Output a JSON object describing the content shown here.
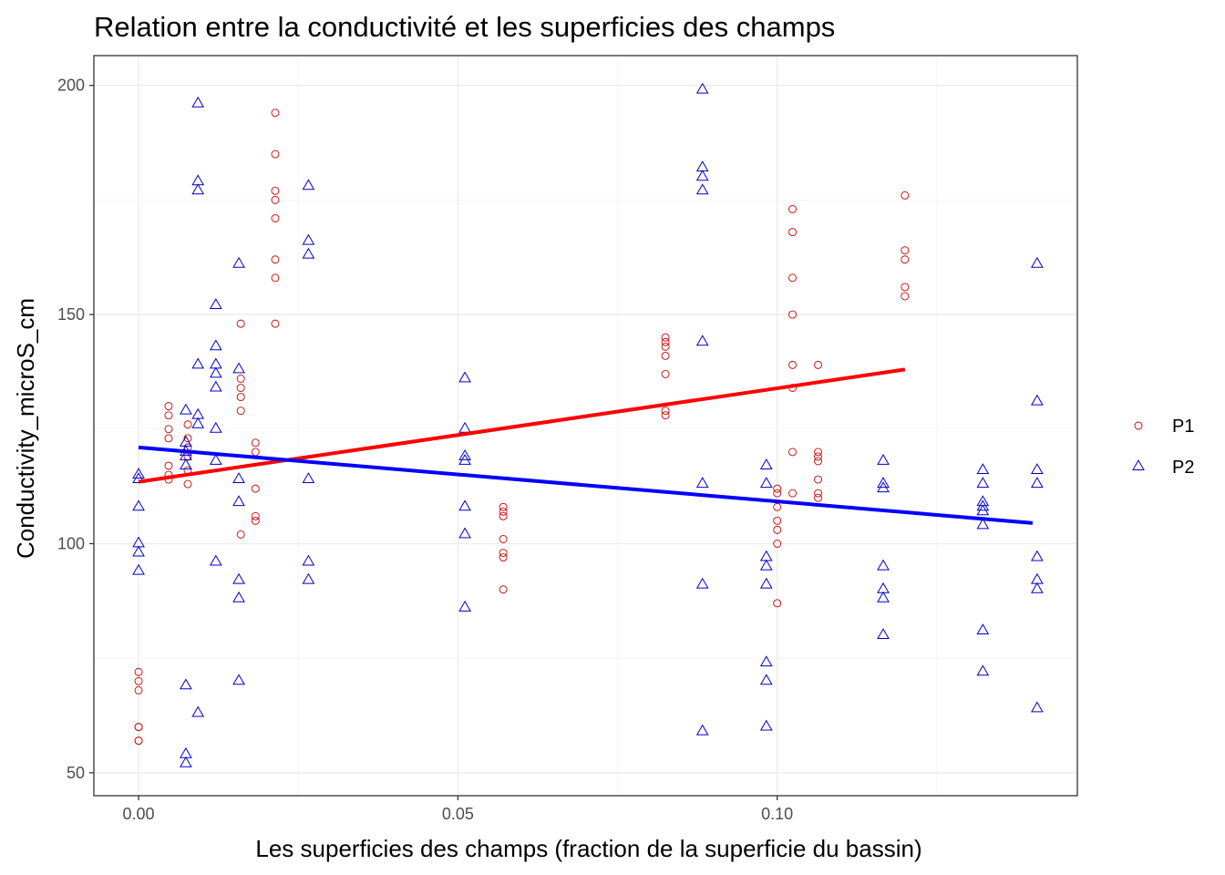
{
  "chart_data": {
    "type": "scatter",
    "title": "Relation entre la conductivité et les superficies des champs",
    "xlabel": "Les superficies des champs (fraction de la superficie du bassin)",
    "ylabel": "Conductivity_microS_cm",
    "xlim": [
      -0.007,
      0.147
    ],
    "ylim": [
      45,
      206.5
    ],
    "x_ticks": [
      0.0,
      0.05,
      0.1
    ],
    "x_tick_labels": [
      "0.00",
      "0.05",
      "0.10"
    ],
    "y_ticks": [
      50,
      100,
      150,
      200
    ],
    "y_tick_labels": [
      "50",
      "100",
      "150",
      "200"
    ],
    "grid": true,
    "legend_position": "right",
    "series": [
      {
        "name": "P1",
        "marker": "circle",
        "color": "#cc0000",
        "line_color": "#ff0000",
        "trend": {
          "x": [
            0.0,
            0.12
          ],
          "y": [
            113.5,
            138.0
          ]
        },
        "points": [
          [
            0.0,
            72
          ],
          [
            0.0,
            70
          ],
          [
            0.0,
            68
          ],
          [
            0.0,
            60
          ],
          [
            0.0,
            60
          ],
          [
            0.0,
            57
          ],
          [
            0.0,
            57
          ],
          [
            0.0047,
            130
          ],
          [
            0.0047,
            128
          ],
          [
            0.0047,
            125
          ],
          [
            0.0047,
            123
          ],
          [
            0.0047,
            117
          ],
          [
            0.0047,
            115
          ],
          [
            0.0047,
            114
          ],
          [
            0.0077,
            126
          ],
          [
            0.0077,
            123
          ],
          [
            0.0077,
            121
          ],
          [
            0.0077,
            119
          ],
          [
            0.0077,
            116
          ],
          [
            0.0077,
            113
          ],
          [
            0.016,
            148
          ],
          [
            0.016,
            136
          ],
          [
            0.016,
            134
          ],
          [
            0.016,
            132
          ],
          [
            0.016,
            129
          ],
          [
            0.016,
            102
          ],
          [
            0.0183,
            122
          ],
          [
            0.0183,
            120
          ],
          [
            0.0183,
            112
          ],
          [
            0.0183,
            106
          ],
          [
            0.0183,
            105
          ],
          [
            0.0214,
            194
          ],
          [
            0.0214,
            185
          ],
          [
            0.0214,
            177
          ],
          [
            0.0214,
            175
          ],
          [
            0.0214,
            171
          ],
          [
            0.0214,
            162
          ],
          [
            0.0214,
            158
          ],
          [
            0.0214,
            148
          ],
          [
            0.0571,
            108
          ],
          [
            0.0571,
            107
          ],
          [
            0.0571,
            106
          ],
          [
            0.0571,
            101
          ],
          [
            0.0571,
            98
          ],
          [
            0.0571,
            97
          ],
          [
            0.0571,
            90
          ],
          [
            0.0825,
            145
          ],
          [
            0.0825,
            144
          ],
          [
            0.0825,
            143
          ],
          [
            0.0825,
            141
          ],
          [
            0.0825,
            137
          ],
          [
            0.0825,
            129
          ],
          [
            0.0825,
            128
          ],
          [
            0.1,
            112
          ],
          [
            0.1,
            111
          ],
          [
            0.1,
            108
          ],
          [
            0.1,
            105
          ],
          [
            0.1,
            103
          ],
          [
            0.1,
            100
          ],
          [
            0.1,
            87
          ],
          [
            0.1024,
            173
          ],
          [
            0.1024,
            168
          ],
          [
            0.1024,
            158
          ],
          [
            0.1024,
            150
          ],
          [
            0.1024,
            139
          ],
          [
            0.1024,
            134
          ],
          [
            0.1024,
            120
          ],
          [
            0.1024,
            111
          ],
          [
            0.1064,
            139
          ],
          [
            0.1064,
            120
          ],
          [
            0.1064,
            119
          ],
          [
            0.1064,
            118
          ],
          [
            0.1064,
            114
          ],
          [
            0.1064,
            111
          ],
          [
            0.1064,
            110
          ],
          [
            0.12,
            176
          ],
          [
            0.12,
            164
          ],
          [
            0.12,
            162
          ],
          [
            0.12,
            156
          ],
          [
            0.12,
            154
          ]
        ]
      },
      {
        "name": "P2",
        "marker": "triangle",
        "color": "#0000cc",
        "line_color": "#0000ff",
        "trend": {
          "x": [
            0.0,
            0.14
          ],
          "y": [
            121.0,
            104.5
          ]
        },
        "points": [
          [
            0.0,
            115
          ],
          [
            0.0,
            114
          ],
          [
            0.0,
            108
          ],
          [
            0.0,
            100
          ],
          [
            0.0,
            98
          ],
          [
            0.0,
            94
          ],
          [
            0.0074,
            129
          ],
          [
            0.0074,
            122
          ],
          [
            0.0074,
            120
          ],
          [
            0.0074,
            119
          ],
          [
            0.0074,
            117
          ],
          [
            0.0074,
            69
          ],
          [
            0.0074,
            54
          ],
          [
            0.0074,
            52
          ],
          [
            0.0093,
            196
          ],
          [
            0.0093,
            179
          ],
          [
            0.0093,
            177
          ],
          [
            0.0093,
            139
          ],
          [
            0.0093,
            128
          ],
          [
            0.0093,
            126
          ],
          [
            0.0093,
            63
          ],
          [
            0.0121,
            152
          ],
          [
            0.0121,
            143
          ],
          [
            0.0121,
            139
          ],
          [
            0.0121,
            137
          ],
          [
            0.0121,
            134
          ],
          [
            0.0121,
            125
          ],
          [
            0.0121,
            118
          ],
          [
            0.0121,
            96
          ],
          [
            0.0157,
            161
          ],
          [
            0.0157,
            138
          ],
          [
            0.0157,
            114
          ],
          [
            0.0157,
            109
          ],
          [
            0.0157,
            92
          ],
          [
            0.0157,
            88
          ],
          [
            0.0157,
            70
          ],
          [
            0.0266,
            178
          ],
          [
            0.0266,
            166
          ],
          [
            0.0266,
            163
          ],
          [
            0.0266,
            114
          ],
          [
            0.0266,
            96
          ],
          [
            0.0266,
            92
          ],
          [
            0.0511,
            136
          ],
          [
            0.0511,
            125
          ],
          [
            0.0511,
            119
          ],
          [
            0.0511,
            118
          ],
          [
            0.0511,
            108
          ],
          [
            0.0511,
            102
          ],
          [
            0.0511,
            86
          ],
          [
            0.0883,
            199
          ],
          [
            0.0883,
            182
          ],
          [
            0.0883,
            180
          ],
          [
            0.0883,
            177
          ],
          [
            0.0883,
            144
          ],
          [
            0.0883,
            113
          ],
          [
            0.0883,
            91
          ],
          [
            0.0883,
            59
          ],
          [
            0.0983,
            117
          ],
          [
            0.0983,
            113
          ],
          [
            0.0983,
            97
          ],
          [
            0.0983,
            95
          ],
          [
            0.0983,
            91
          ],
          [
            0.0983,
            74
          ],
          [
            0.0983,
            70
          ],
          [
            0.0983,
            60
          ],
          [
            0.1166,
            118
          ],
          [
            0.1166,
            113
          ],
          [
            0.1166,
            112
          ],
          [
            0.1166,
            95
          ],
          [
            0.1166,
            90
          ],
          [
            0.1166,
            88
          ],
          [
            0.1166,
            80
          ],
          [
            0.1322,
            116
          ],
          [
            0.1322,
            113
          ],
          [
            0.1322,
            109
          ],
          [
            0.1322,
            108
          ],
          [
            0.1322,
            107
          ],
          [
            0.1322,
            104
          ],
          [
            0.1322,
            81
          ],
          [
            0.1322,
            72
          ],
          [
            0.1407,
            161
          ],
          [
            0.1407,
            131
          ],
          [
            0.1407,
            116
          ],
          [
            0.1407,
            113
          ],
          [
            0.1407,
            97
          ],
          [
            0.1407,
            92
          ],
          [
            0.1407,
            90
          ],
          [
            0.1407,
            64
          ]
        ]
      }
    ]
  }
}
